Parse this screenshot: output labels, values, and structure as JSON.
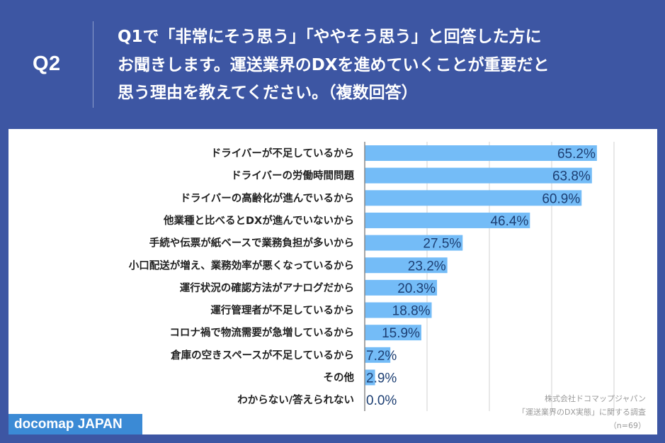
{
  "header": {
    "question_number": "Q2",
    "question_lines": [
      "Q1で「非常にそう思う」「ややそう思う」と回答した方に",
      "お聞きします。運送業界のDXを進めていくことが重要だと",
      "思う理由を教えてください。（複数回答）"
    ]
  },
  "footer": {
    "logo": "docomap JAPAN",
    "credit_lines": [
      "株式会社ドコマップジャパン",
      "「運送業界のDX実態」に関する調査",
      "（n=69）"
    ]
  },
  "colors": {
    "background": "#3d56a3",
    "bar": "#74bcf7",
    "value_text": "#1d3f73",
    "logo_bg": "#3b8ad5",
    "grid": "#d0d0d0",
    "axis": "#888888"
  },
  "chart_data": {
    "type": "bar",
    "orientation": "horizontal",
    "title": "Q1で「非常にそう思う」「ややそう思う」と回答した方にお聞きします。運送業界のDXを進めていくことが重要だと思う理由を教えてください。（複数回答）",
    "xlabel": "",
    "ylabel": "",
    "xlim": [
      0,
      70
    ],
    "grid": true,
    "gridlines": [
      17.5,
      35,
      52.5,
      70
    ],
    "unit": "%",
    "categories": [
      "ドライバーが不足しているから",
      "ドライバーの労働時間問題",
      "ドライバーの高齢化が進んでいるから",
      "他業種と比べるとDXが進んでいないから",
      "手続や伝票が紙ベースで業務負担が多いから",
      "小口配送が増え、業務効率が悪くなっているから",
      "運行状況の確認方法がアナログだから",
      "運行管理者が不足しているから",
      "コロナ禍で物流需要が急増しているから",
      "倉庫の空きスペースが不足しているから",
      "その他",
      "わからない/答えられない"
    ],
    "values": [
      65.2,
      63.8,
      60.9,
      46.4,
      27.5,
      23.2,
      20.3,
      18.8,
      15.9,
      7.2,
      2.9,
      0.0
    ],
    "value_labels": [
      "65.2%",
      "63.8%",
      "60.9%",
      "46.4%",
      "27.5%",
      "23.2%",
      "20.3%",
      "18.8%",
      "15.9%",
      "7.2%",
      "2.9%",
      "0.0%"
    ]
  }
}
